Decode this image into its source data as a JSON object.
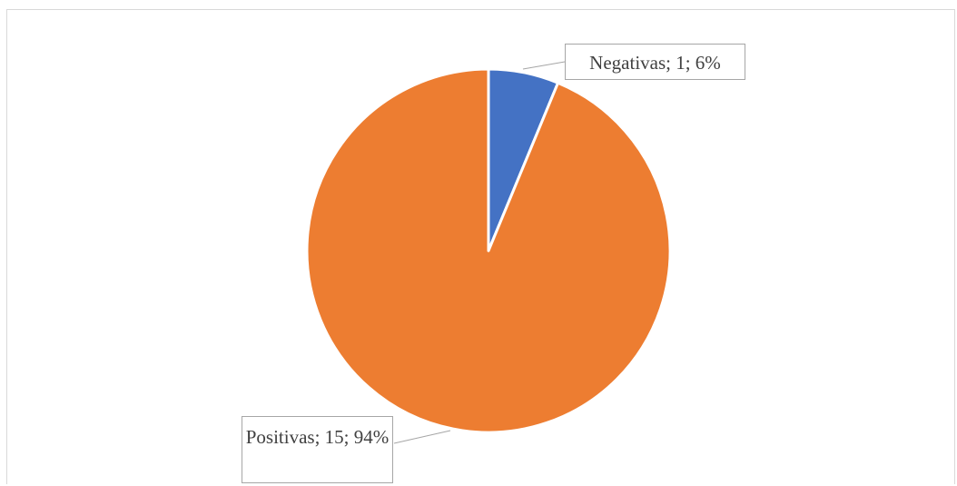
{
  "chart_data": {
    "type": "pie",
    "categories": [
      "Negativas",
      "Positivas"
    ],
    "values": [
      1,
      15
    ],
    "percentages": [
      "6%",
      "94%"
    ],
    "colors": [
      "#4472c4",
      "#ed7d31"
    ],
    "data_labels": [
      "Negativas; 1; 6%",
      "Positivas; 15; 94%"
    ],
    "start_angle_deg": 0,
    "direction": "clockwise",
    "legend": "none"
  }
}
